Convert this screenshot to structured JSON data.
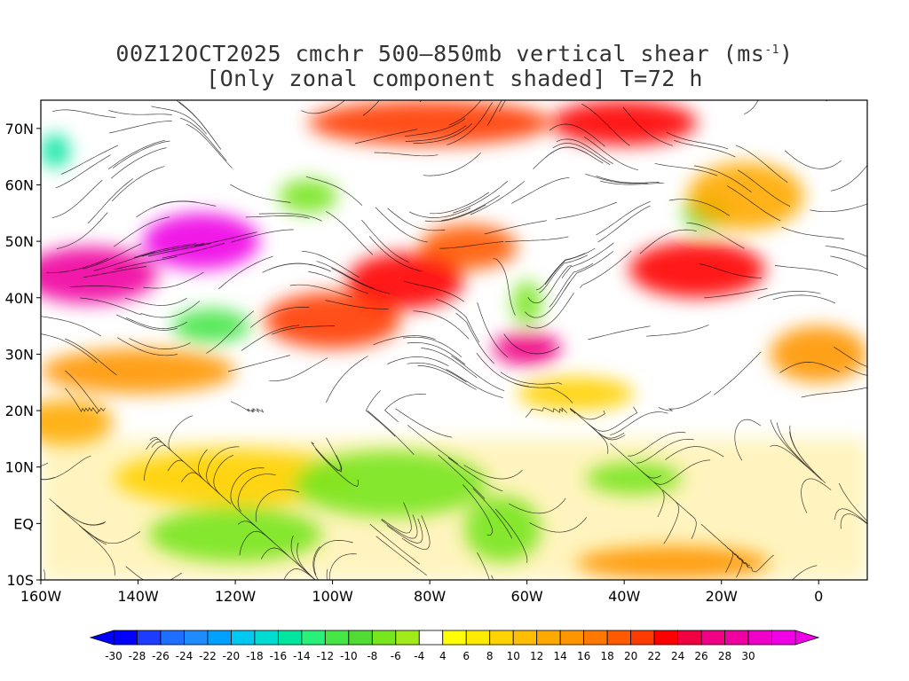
{
  "title": {
    "line1_prefix": "00Z12OCT2025 cmchr 500–850mb vertical shear (ms",
    "line1_sup": "-1",
    "line1_suffix": ")",
    "line2": "[Only zonal component shaded] T=72 h"
  },
  "map": {
    "projection": "latitude-longitude",
    "lon_range": [
      -160,
      10
    ],
    "lat_range": [
      -10,
      75
    ],
    "x_ticks": [
      {
        "value": -160,
        "label": "160W"
      },
      {
        "value": -140,
        "label": "140W"
      },
      {
        "value": -120,
        "label": "120W"
      },
      {
        "value": -100,
        "label": "100W"
      },
      {
        "value": -80,
        "label": "80W"
      },
      {
        "value": -60,
        "label": "60W"
      },
      {
        "value": -40,
        "label": "40W"
      },
      {
        "value": -20,
        "label": "20W"
      },
      {
        "value": 0,
        "label": "0"
      }
    ],
    "y_ticks": [
      {
        "value": 70,
        "label": "70N"
      },
      {
        "value": 60,
        "label": "60N"
      },
      {
        "value": 50,
        "label": "50N"
      },
      {
        "value": 40,
        "label": "40N"
      },
      {
        "value": 30,
        "label": "30N"
      },
      {
        "value": 20,
        "label": "20N"
      },
      {
        "value": 10,
        "label": "10N"
      },
      {
        "value": 0,
        "label": "EQ"
      },
      {
        "value": -10,
        "label": "10S"
      }
    ],
    "features": [
      {
        "type": "jet",
        "lon": -150,
        "lat": 44,
        "rx": 14,
        "ry": 5,
        "value": 28
      },
      {
        "type": "jet",
        "lon": -127,
        "lat": 50,
        "rx": 12,
        "ry": 5,
        "value": 30
      },
      {
        "type": "jet",
        "lon": -100,
        "lat": 36,
        "rx": 14,
        "ry": 5,
        "value": 20
      },
      {
        "type": "jet",
        "lon": -85,
        "lat": 43,
        "rx": 12,
        "ry": 5,
        "value": 22
      },
      {
        "type": "jet",
        "lon": -72,
        "lat": 49,
        "rx": 10,
        "ry": 4,
        "value": 18
      },
      {
        "type": "jet",
        "lon": -60,
        "lat": 31,
        "rx": 7,
        "ry": 3,
        "value": 26
      },
      {
        "type": "jet",
        "lon": -25,
        "lat": 45,
        "rx": 14,
        "ry": 5,
        "value": 22
      },
      {
        "type": "jet",
        "lon": -80,
        "lat": 71,
        "rx": 25,
        "ry": 4,
        "value": 20
      },
      {
        "type": "jet",
        "lon": -40,
        "lat": 71,
        "rx": 15,
        "ry": 4,
        "value": 22
      },
      {
        "type": "jet",
        "lon": -140,
        "lat": 27,
        "rx": 20,
        "ry": 4,
        "value": 14
      },
      {
        "type": "jet",
        "lon": -155,
        "lat": 18,
        "rx": 10,
        "ry": 4,
        "value": 12
      },
      {
        "type": "jet",
        "lon": -120,
        "lat": 8,
        "rx": 25,
        "ry": 5,
        "value": 8
      },
      {
        "type": "jet",
        "lon": -30,
        "lat": -7,
        "rx": 20,
        "ry": 3,
        "value": 14
      },
      {
        "type": "jet",
        "lon": 0,
        "lat": 30,
        "rx": 10,
        "ry": 5,
        "value": 14
      },
      {
        "type": "jet",
        "lon": -15,
        "lat": 58,
        "rx": 12,
        "ry": 6,
        "value": 12
      },
      {
        "type": "jet",
        "lon": -50,
        "lat": 23,
        "rx": 12,
        "ry": 3,
        "value": 8
      },
      {
        "type": "easterly",
        "lon": -120,
        "lat": -2,
        "rx": 18,
        "ry": 5,
        "value": -8
      },
      {
        "type": "easterly",
        "lon": -88,
        "lat": 7,
        "rx": 20,
        "ry": 6,
        "value": -8
      },
      {
        "type": "easterly",
        "lon": -65,
        "lat": -1,
        "rx": 8,
        "ry": 6,
        "value": -8
      },
      {
        "type": "easterly",
        "lon": -38,
        "lat": 8,
        "rx": 10,
        "ry": 3,
        "value": -8
      },
      {
        "type": "easterly",
        "lon": -125,
        "lat": 35,
        "rx": 8,
        "ry": 3,
        "value": -12
      },
      {
        "type": "easterly",
        "lon": -157,
        "lat": 66,
        "rx": 3,
        "ry": 3,
        "value": -16
      },
      {
        "type": "easterly",
        "lon": -105,
        "lat": 58,
        "rx": 6,
        "ry": 3,
        "value": -8
      },
      {
        "type": "easterly",
        "lon": -60,
        "lat": 39,
        "rx": 3,
        "ry": 4,
        "value": -8
      },
      {
        "type": "easterly",
        "lon": -23,
        "lat": 55,
        "rx": 5,
        "ry": 3,
        "value": -10
      }
    ]
  },
  "colorbar": {
    "colors": [
      "#0000ff",
      "#1e3cff",
      "#1e6eff",
      "#1e8cff",
      "#00a0ff",
      "#00c8f0",
      "#00dcd2",
      "#00e6a0",
      "#28f078",
      "#46e646",
      "#50dc32",
      "#78e61e",
      "#a0eb19",
      "#ffffff",
      "#ffff00",
      "#ffeb00",
      "#ffd200",
      "#ffbe00",
      "#ffaa00",
      "#ff9600",
      "#ff7800",
      "#ff5a00",
      "#ff3c00",
      "#ff0000",
      "#f00040",
      "#f00082",
      "#f000a0",
      "#f000c8",
      "#f000e6"
    ],
    "labels": [
      "-30",
      "-28",
      "-26",
      "-24",
      "-22",
      "-20",
      "-18",
      "-16",
      "-14",
      "-12",
      "-10",
      "-8",
      "-6",
      "-4",
      "4",
      "6",
      "8",
      "10",
      "12",
      "14",
      "16",
      "18",
      "20",
      "22",
      "24",
      "26",
      "28",
      "30"
    ]
  }
}
